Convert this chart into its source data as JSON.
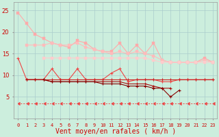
{
  "x": [
    0,
    1,
    2,
    3,
    4,
    5,
    6,
    7,
    8,
    9,
    10,
    11,
    12,
    13,
    14,
    15,
    16,
    17,
    18,
    19,
    20,
    21,
    22,
    23
  ],
  "line1": [
    24.5,
    22,
    19.5,
    18.5,
    17.5,
    17,
    16.5,
    18,
    17.5,
    16,
    15.5,
    15.5,
    17.5,
    15,
    17,
    15,
    17.5,
    13.5,
    13,
    13,
    13,
    13,
    14,
    13
  ],
  "line2": [
    null,
    17,
    17,
    17,
    17.5,
    17,
    17,
    17.5,
    16.5,
    16,
    15.5,
    15,
    15.5,
    15,
    15.5,
    15,
    14.5,
    13.5,
    13,
    13,
    13,
    13,
    13.5,
    13
  ],
  "line3": [
    null,
    null,
    null,
    14,
    14,
    14,
    14,
    14,
    14,
    14,
    14,
    14,
    14,
    14,
    14,
    14,
    13.5,
    13,
    13,
    13,
    13,
    13,
    13,
    13
  ],
  "line4": [
    14,
    9,
    9,
    9,
    11.5,
    9,
    9,
    11.5,
    9,
    9,
    9,
    10.5,
    11.5,
    8.5,
    9,
    9,
    9,
    8.5,
    8.5,
    9,
    9,
    9,
    9,
    9
  ],
  "line5": [
    null,
    9,
    9,
    9,
    9,
    9,
    9,
    9,
    9,
    9,
    9,
    9,
    9,
    9,
    9,
    9,
    9,
    9,
    9,
    9,
    9,
    9,
    9,
    9
  ],
  "line6": [
    null,
    9,
    9,
    9,
    8.5,
    8.5,
    8.5,
    8.5,
    8.5,
    8.5,
    8.5,
    8.5,
    8.5,
    8,
    8,
    8,
    7.5,
    7,
    7,
    null,
    null,
    null,
    null,
    null
  ],
  "line7": [
    null,
    null,
    null,
    9,
    8.5,
    8.5,
    8.5,
    8.5,
    8.5,
    8.5,
    8,
    8,
    8,
    7.5,
    7.5,
    7.5,
    7,
    7,
    5,
    6.5,
    null,
    null,
    null,
    null
  ],
  "line_dashed": [
    3.5,
    3.5,
    3.5,
    3.5,
    3.5,
    3.5,
    3.5,
    3.5,
    3.5,
    3.5,
    3.5,
    3.5,
    3.5,
    3.5,
    3.5,
    3.5,
    3.5,
    3.5,
    3.5,
    3.5,
    3.5,
    3.5,
    3.5,
    3.5
  ],
  "xlabel": "Vent moyen/en rafales ( km/h )",
  "ylim": [
    0,
    27
  ],
  "yticks": [
    5,
    10,
    15,
    20,
    25
  ],
  "xticks": [
    0,
    1,
    2,
    3,
    4,
    5,
    6,
    7,
    8,
    9,
    10,
    11,
    12,
    13,
    14,
    15,
    16,
    17,
    18,
    19,
    20,
    21,
    22,
    23
  ],
  "bg_color": "#cceedd",
  "grid_color": "#aacccc",
  "color_lp1": "#ffaaaa",
  "color_lp2": "#ffbbbb",
  "color_lp3": "#ffcccc",
  "color_red1": "#ee4444",
  "color_red2": "#cc2222",
  "color_red3": "#aa1111",
  "color_red4": "#880000",
  "color_dash": "#ee4444"
}
